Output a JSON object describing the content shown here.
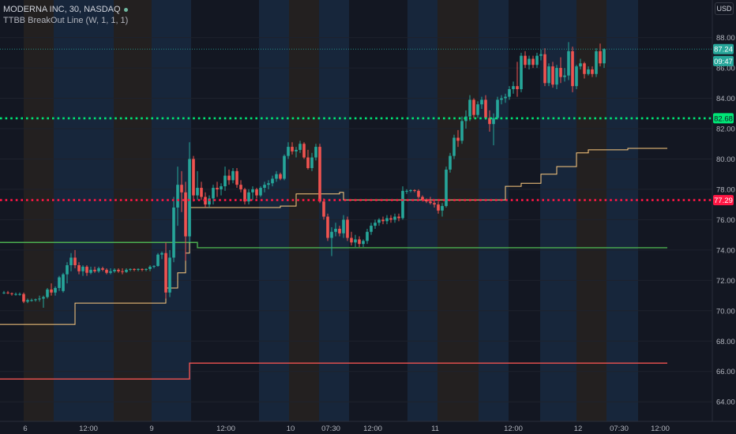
{
  "header": {
    "symbol_line": "MODERNA INC, 30, NASDAQ",
    "indicator_line": "TTBB BreakOut Line (W, 1, 1, 1)"
  },
  "currency": "USD",
  "colors": {
    "background": "#131722",
    "up": "#26a69a",
    "down": "#ef5350",
    "green_level": "#00e676",
    "red_level": "#ff1744",
    "upper_band": "#4caf50",
    "lower_band": "#ef5350",
    "trail_line": "#ffcc80",
    "session_blue": "#1a2c44",
    "session_orange": "#2a2420"
  },
  "chart_data": {
    "type": "candlestick",
    "title": "MODERNA INC, 30, NASDAQ",
    "y_axis": {
      "ticks": [
        64,
        66,
        68,
        70,
        72,
        74,
        76,
        78,
        80,
        82,
        84,
        86,
        88
      ],
      "range": [
        63.4,
        89.9
      ]
    },
    "x_axis": {
      "labels": [
        "6",
        "12:00",
        "9",
        "12:00",
        "10",
        "07:30",
        "12:00",
        "11",
        "12:00",
        "12",
        "07:30",
        "12:00"
      ]
    },
    "price_labels": [
      {
        "text": "87.24",
        "value": 87.24,
        "color": "#26a69a"
      },
      {
        "text": "09:47",
        "value": 86.45,
        "color": "#26a69a"
      },
      {
        "text": "82.68",
        "value": 82.68,
        "color": "#00e676"
      },
      {
        "text": "77.29",
        "value": 77.29,
        "color": "#ff1744"
      }
    ],
    "horizontal_levels": [
      {
        "value": 82.68,
        "style": "dotted",
        "color": "#00e676"
      },
      {
        "value": 77.29,
        "style": "dotted",
        "color": "#ff1744"
      }
    ],
    "last_price": 87.24,
    "breakout_upper": {
      "segments": [
        {
          "y": 74.5,
          "from": 0,
          "to": 49
        },
        {
          "y": 74.15,
          "from": 49,
          "to": 168
        }
      ]
    },
    "breakout_lower": {
      "segments": [
        {
          "y": 65.5,
          "from": 0,
          "to": 47
        },
        {
          "y": 66.55,
          "from": 47,
          "to": 168
        }
      ]
    },
    "trail_line": [
      [
        0,
        69.1
      ],
      [
        13,
        69.1
      ],
      [
        18,
        70.5
      ],
      [
        40,
        70.5
      ],
      [
        41,
        71.5
      ],
      [
        44,
        72.5
      ],
      [
        46,
        73.8
      ],
      [
        47,
        76.8
      ],
      [
        56,
        76.8
      ],
      [
        70,
        76.9
      ],
      [
        74,
        77.7
      ],
      [
        85,
        77.8
      ],
      [
        86,
        77.3
      ],
      [
        126,
        77.3
      ],
      [
        127,
        78.2
      ],
      [
        131,
        78.4
      ],
      [
        136,
        79.0
      ],
      [
        140,
        79.5
      ],
      [
        145,
        80.4
      ],
      [
        148,
        80.6
      ],
      [
        158,
        80.7
      ],
      [
        160,
        80.7
      ],
      [
        168,
        80.7
      ]
    ],
    "ohlc": [
      [
        71.2,
        71.3,
        71.1,
        71.2
      ],
      [
        71.2,
        71.3,
        71.1,
        71.15
      ],
      [
        71.15,
        71.2,
        71.0,
        71.1
      ],
      [
        71.1,
        71.2,
        71.0,
        71.1
      ],
      [
        71.1,
        71.2,
        71.0,
        71.1
      ],
      [
        71.1,
        71.2,
        70.5,
        70.6
      ],
      [
        70.6,
        70.8,
        70.5,
        70.7
      ],
      [
        70.7,
        70.8,
        70.6,
        70.7
      ],
      [
        70.7,
        70.8,
        70.6,
        70.75
      ],
      [
        70.75,
        71.0,
        70.6,
        70.8
      ],
      [
        70.8,
        71.0,
        70.2,
        70.9
      ],
      [
        70.9,
        71.5,
        70.8,
        71.4
      ],
      [
        71.4,
        71.8,
        71.0,
        71.2
      ],
      [
        71.2,
        71.6,
        71.0,
        71.5
      ],
      [
        71.5,
        72.3,
        71.3,
        72.2
      ],
      [
        71.3,
        72.5,
        71.2,
        72.4
      ],
      [
        72.4,
        73.2,
        71.8,
        73.0
      ],
      [
        73.0,
        73.8,
        72.6,
        73.5
      ],
      [
        73.5,
        74.0,
        72.8,
        73.0
      ],
      [
        73.0,
        73.2,
        72.4,
        72.6
      ],
      [
        72.6,
        73.0,
        72.3,
        72.9
      ],
      [
        72.9,
        73.0,
        72.3,
        72.5
      ],
      [
        72.5,
        72.9,
        72.4,
        72.7
      ],
      [
        72.7,
        72.9,
        72.5,
        72.6
      ],
      [
        72.6,
        72.9,
        72.5,
        72.8
      ],
      [
        72.8,
        72.9,
        72.6,
        72.7
      ],
      [
        72.7,
        72.8,
        72.4,
        72.5
      ],
      [
        72.5,
        72.8,
        72.4,
        72.6
      ],
      [
        72.6,
        72.8,
        72.5,
        72.7
      ],
      [
        72.7,
        72.8,
        72.5,
        72.6
      ],
      [
        72.6,
        72.8,
        72.4,
        72.55
      ],
      [
        72.55,
        72.8,
        72.5,
        72.7
      ],
      [
        72.7,
        72.8,
        72.6,
        72.75
      ],
      [
        72.75,
        72.8,
        72.6,
        72.7
      ],
      [
        72.7,
        72.8,
        72.6,
        72.75
      ],
      [
        72.75,
        72.8,
        72.6,
        72.7
      ],
      [
        72.7,
        72.8,
        72.6,
        72.75
      ],
      [
        72.75,
        73.0,
        72.6,
        72.9
      ],
      [
        72.9,
        73.0,
        72.8,
        72.95
      ],
      [
        72.95,
        73.8,
        72.9,
        73.7
      ],
      [
        73.7,
        73.9,
        73.4,
        73.8
      ],
      [
        73.8,
        74.5,
        70.8,
        71.2
      ],
      [
        71.2,
        74.0,
        70.9,
        73.5
      ],
      [
        73.5,
        77.5,
        73.2,
        76.8
      ],
      [
        76.8,
        79.5,
        75.6,
        78.3
      ],
      [
        78.3,
        79.2,
        76.5,
        77.8
      ],
      [
        77.8,
        78.5,
        73.3,
        74.9
      ],
      [
        74.9,
        81.1,
        74.5,
        80.0
      ],
      [
        80.0,
        80.2,
        77.2,
        77.6
      ],
      [
        77.6,
        79.2,
        77.3,
        78.1
      ],
      [
        78.1,
        78.5,
        77.3,
        77.5
      ],
      [
        77.5,
        77.8,
        76.8,
        77.0
      ],
      [
        77.0,
        77.6,
        76.8,
        77.4
      ],
      [
        77.4,
        78.3,
        77.0,
        78.1
      ],
      [
        78.1,
        78.5,
        77.5,
        78.0
      ],
      [
        78.0,
        78.4,
        77.6,
        78.2
      ],
      [
        78.2,
        79.5,
        77.9,
        78.9
      ],
      [
        78.9,
        79.3,
        78.3,
        78.6
      ],
      [
        78.6,
        79.4,
        78.4,
        79.2
      ],
      [
        79.2,
        79.4,
        78.1,
        78.3
      ],
      [
        78.3,
        78.6,
        77.8,
        78.0
      ],
      [
        78.0,
        78.1,
        77.0,
        77.2
      ],
      [
        77.2,
        78.0,
        77.0,
        77.8
      ],
      [
        77.8,
        78.2,
        77.3,
        78.0
      ],
      [
        78.0,
        78.1,
        77.4,
        77.6
      ],
      [
        77.6,
        78.2,
        77.5,
        78.1
      ],
      [
        78.1,
        78.5,
        77.8,
        78.3
      ],
      [
        78.3,
        78.6,
        78.0,
        78.4
      ],
      [
        78.4,
        78.9,
        78.2,
        78.7
      ],
      [
        78.7,
        79.2,
        78.5,
        79.0
      ],
      [
        79.0,
        79.1,
        78.6,
        78.7
      ],
      [
        78.7,
        80.3,
        78.6,
        80.2
      ],
      [
        80.2,
        81.1,
        80.0,
        80.8
      ],
      [
        80.8,
        81.1,
        80.3,
        80.5
      ],
      [
        80.5,
        80.8,
        80.1,
        80.6
      ],
      [
        80.6,
        81.2,
        80.4,
        81.0
      ],
      [
        81.0,
        81.1,
        80.0,
        80.1
      ],
      [
        80.1,
        80.6,
        79.3,
        79.4
      ],
      [
        79.4,
        80.4,
        79.2,
        80.1
      ],
      [
        80.1,
        81.0,
        79.9,
        80.8
      ],
      [
        80.8,
        81.0,
        77.1,
        77.2
      ],
      [
        77.2,
        77.4,
        76.0,
        76.2
      ],
      [
        76.2,
        76.4,
        74.6,
        74.8
      ],
      [
        74.8,
        75.5,
        73.6,
        75.2
      ],
      [
        75.2,
        75.8,
        74.9,
        75.4
      ],
      [
        75.4,
        75.6,
        74.9,
        75.1
      ],
      [
        75.1,
        76.3,
        74.8,
        76.0
      ],
      [
        76.0,
        76.2,
        74.6,
        74.8
      ],
      [
        74.8,
        75.2,
        74.3,
        74.5
      ],
      [
        74.5,
        75.0,
        74.2,
        74.7
      ],
      [
        74.7,
        74.9,
        74.2,
        74.4
      ],
      [
        74.4,
        74.7,
        74.2,
        74.6
      ],
      [
        74.6,
        75.4,
        74.4,
        75.2
      ],
      [
        75.2,
        75.8,
        75.0,
        75.6
      ],
      [
        75.6,
        76.0,
        75.4,
        75.8
      ],
      [
        75.8,
        76.1,
        75.6,
        76.0
      ],
      [
        76.0,
        76.2,
        75.7,
        75.9
      ],
      [
        75.9,
        76.3,
        75.7,
        76.1
      ],
      [
        76.1,
        76.3,
        75.8,
        76.0
      ],
      [
        76.0,
        76.4,
        75.8,
        76.2
      ],
      [
        76.2,
        76.4,
        75.9,
        76.1
      ],
      [
        76.1,
        78.2,
        76.0,
        77.9
      ],
      [
        77.9,
        78.0,
        77.7,
        77.9
      ],
      [
        77.9,
        78.0,
        77.8,
        77.95
      ],
      [
        77.95,
        78.0,
        77.8,
        77.9
      ],
      [
        77.9,
        78.0,
        77.4,
        77.5
      ],
      [
        77.5,
        77.6,
        77.2,
        77.3
      ],
      [
        77.3,
        77.4,
        77.1,
        77.2
      ],
      [
        77.2,
        77.5,
        77.0,
        77.1
      ],
      [
        77.1,
        77.3,
        76.8,
        77.0
      ],
      [
        77.0,
        77.2,
        76.4,
        76.6
      ],
      [
        76.6,
        77.1,
        76.2,
        76.9
      ],
      [
        76.9,
        79.5,
        76.8,
        79.3
      ],
      [
        79.3,
        80.4,
        79.1,
        80.2
      ],
      [
        80.2,
        81.6,
        80.0,
        81.4
      ],
      [
        81.4,
        81.9,
        80.8,
        81.2
      ],
      [
        81.2,
        82.8,
        81.0,
        82.5
      ],
      [
        82.5,
        83.2,
        82.0,
        82.8
      ],
      [
        82.8,
        84.2,
        82.5,
        83.9
      ],
      [
        83.9,
        84.0,
        82.7,
        82.9
      ],
      [
        82.9,
        83.8,
        82.7,
        83.6
      ],
      [
        83.6,
        84.1,
        83.3,
        83.9
      ],
      [
        83.9,
        84.2,
        82.6,
        82.7
      ],
      [
        82.7,
        83.2,
        81.8,
        82.3
      ],
      [
        82.3,
        83.0,
        80.9,
        82.7
      ],
      [
        82.7,
        84.1,
        82.6,
        83.9
      ],
      [
        83.9,
        84.2,
        83.6,
        84.0
      ],
      [
        84.0,
        84.3,
        83.7,
        84.1
      ],
      [
        84.1,
        84.8,
        83.9,
        84.6
      ],
      [
        84.6,
        85.1,
        84.3,
        84.8
      ],
      [
        84.8,
        86.4,
        84.1,
        84.6
      ],
      [
        84.6,
        87.0,
        84.4,
        86.8
      ],
      [
        86.8,
        87.1,
        86.0,
        86.2
      ],
      [
        86.2,
        86.8,
        85.9,
        86.6
      ],
      [
        86.6,
        86.8,
        86.0,
        86.2
      ],
      [
        86.2,
        87.0,
        86.0,
        86.8
      ],
      [
        86.8,
        87.2,
        86.5,
        86.9
      ],
      [
        86.9,
        87.3,
        84.8,
        85.0
      ],
      [
        85.0,
        86.3,
        84.8,
        86.1
      ],
      [
        86.1,
        86.4,
        84.7,
        84.9
      ],
      [
        84.9,
        86.2,
        84.6,
        86.0
      ],
      [
        86.0,
        86.7,
        85.0,
        85.4
      ],
      [
        85.4,
        86.0,
        85.1,
        85.5
      ],
      [
        85.5,
        87.7,
        85.2,
        87.1
      ],
      [
        87.1,
        87.4,
        84.4,
        84.8
      ],
      [
        84.8,
        86.2,
        84.6,
        86.1
      ],
      [
        86.1,
        86.6,
        85.9,
        86.3
      ],
      [
        86.3,
        86.4,
        85.3,
        85.6
      ],
      [
        85.6,
        86.1,
        85.5,
        85.9
      ],
      [
        85.9,
        86.1,
        85.4,
        85.6
      ],
      [
        85.6,
        87.3,
        85.4,
        87.1
      ],
      [
        87.1,
        87.6,
        86.1,
        86.3
      ],
      [
        86.3,
        87.3,
        86.0,
        87.24
      ]
    ]
  }
}
